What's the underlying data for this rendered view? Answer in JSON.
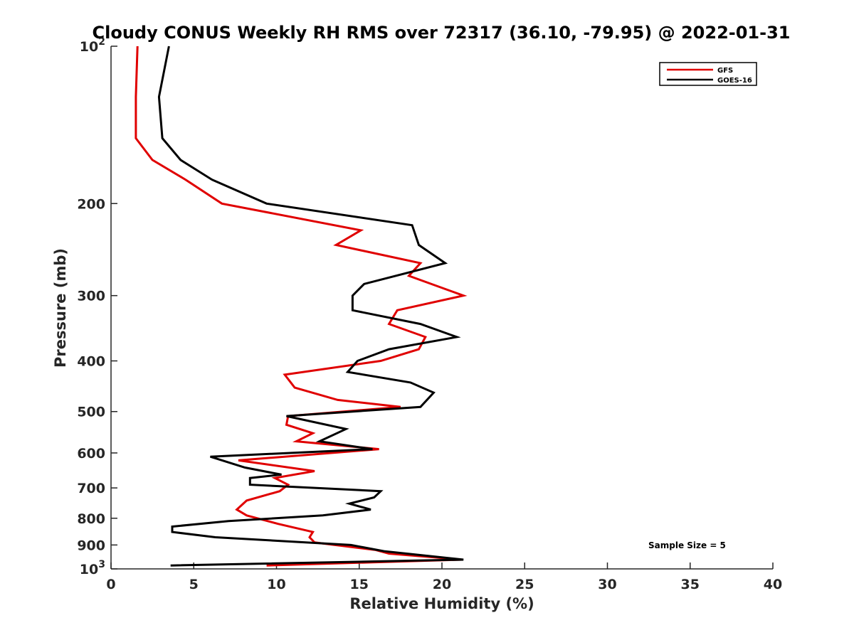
{
  "chart_data": {
    "type": "line",
    "title": "Cloudy CONUS Weekly RH RMS over 72317 (36.10, -79.95) @ 2022-01-31",
    "xlabel": "Relative Humidity (%)",
    "ylabel": "Pressure (mb)",
    "xlim": [
      0,
      40
    ],
    "ylim": [
      100,
      1000
    ],
    "y_scale": "log",
    "y_reversed": true,
    "x_ticks": [
      "0",
      "5",
      "10",
      "15",
      "20",
      "25",
      "30",
      "35",
      "40"
    ],
    "y_ticks": [
      {
        "value": 100,
        "base": "10",
        "exp": "2"
      },
      {
        "value": 200,
        "label": "200"
      },
      {
        "value": 300,
        "label": "300"
      },
      {
        "value": 400,
        "label": "400"
      },
      {
        "value": 500,
        "label": "500"
      },
      {
        "value": 600,
        "label": "600"
      },
      {
        "value": 700,
        "label": "700"
      },
      {
        "value": 800,
        "label": "800"
      },
      {
        "value": 900,
        "label": "900"
      },
      {
        "value": 1000,
        "base": "10",
        "exp": "3"
      }
    ],
    "grid": false,
    "legend_position": "top-right",
    "annotation": "Sample Size = 5",
    "series": [
      {
        "name": "GFS",
        "color": "#e00000",
        "points": [
          [
            1.6,
            100
          ],
          [
            1.5,
            125
          ],
          [
            1.5,
            150
          ],
          [
            2.5,
            165
          ],
          [
            4.5,
            180
          ],
          [
            6.7,
            200
          ],
          [
            15.1,
            225
          ],
          [
            13.6,
            240
          ],
          [
            18.7,
            260
          ],
          [
            18.0,
            275
          ],
          [
            21.3,
            300
          ],
          [
            17.3,
            320
          ],
          [
            16.8,
            340
          ],
          [
            19.0,
            360
          ],
          [
            18.6,
            380
          ],
          [
            16.3,
            400
          ],
          [
            10.5,
            425
          ],
          [
            11.1,
            450
          ],
          [
            13.7,
            475
          ],
          [
            17.5,
            490
          ],
          [
            10.7,
            510
          ],
          [
            10.6,
            530
          ],
          [
            12.2,
            550
          ],
          [
            11.2,
            570
          ],
          [
            16.2,
            590
          ],
          [
            7.7,
            620
          ],
          [
            12.3,
            650
          ],
          [
            9.9,
            670
          ],
          [
            10.7,
            690
          ],
          [
            10.2,
            710
          ],
          [
            8.2,
            740
          ],
          [
            7.6,
            770
          ],
          [
            8.2,
            790
          ],
          [
            10.1,
            820
          ],
          [
            12.2,
            850
          ],
          [
            12.0,
            870
          ],
          [
            12.3,
            890
          ],
          [
            16.0,
            920
          ],
          [
            16.8,
            935
          ],
          [
            21.2,
            960
          ],
          [
            9.4,
            985
          ]
        ]
      },
      {
        "name": "GOES-16",
        "color": "#000000",
        "points": [
          [
            3.5,
            100
          ],
          [
            2.9,
            125
          ],
          [
            3.1,
            150
          ],
          [
            4.2,
            165
          ],
          [
            6.1,
            180
          ],
          [
            9.4,
            200
          ],
          [
            18.2,
            220
          ],
          [
            18.6,
            240
          ],
          [
            20.2,
            260
          ],
          [
            15.3,
            285
          ],
          [
            14.6,
            300
          ],
          [
            14.6,
            320
          ],
          [
            18.7,
            340
          ],
          [
            20.9,
            360
          ],
          [
            16.8,
            380
          ],
          [
            14.9,
            400
          ],
          [
            14.3,
            420
          ],
          [
            18.1,
            440
          ],
          [
            19.5,
            460
          ],
          [
            18.7,
            490
          ],
          [
            10.6,
            510
          ],
          [
            14.2,
            540
          ],
          [
            12.6,
            570
          ],
          [
            15.8,
            590
          ],
          [
            6.0,
            610
          ],
          [
            8.1,
            640
          ],
          [
            10.3,
            660
          ],
          [
            8.4,
            670
          ],
          [
            8.4,
            690
          ],
          [
            16.3,
            710
          ],
          [
            15.9,
            730
          ],
          [
            14.4,
            750
          ],
          [
            15.7,
            770
          ],
          [
            12.8,
            790
          ],
          [
            7.1,
            810
          ],
          [
            3.7,
            830
          ],
          [
            3.7,
            850
          ],
          [
            6.3,
            870
          ],
          [
            14.5,
            900
          ],
          [
            16.5,
            925
          ],
          [
            21.3,
            960
          ],
          [
            3.6,
            985
          ]
        ]
      }
    ]
  }
}
